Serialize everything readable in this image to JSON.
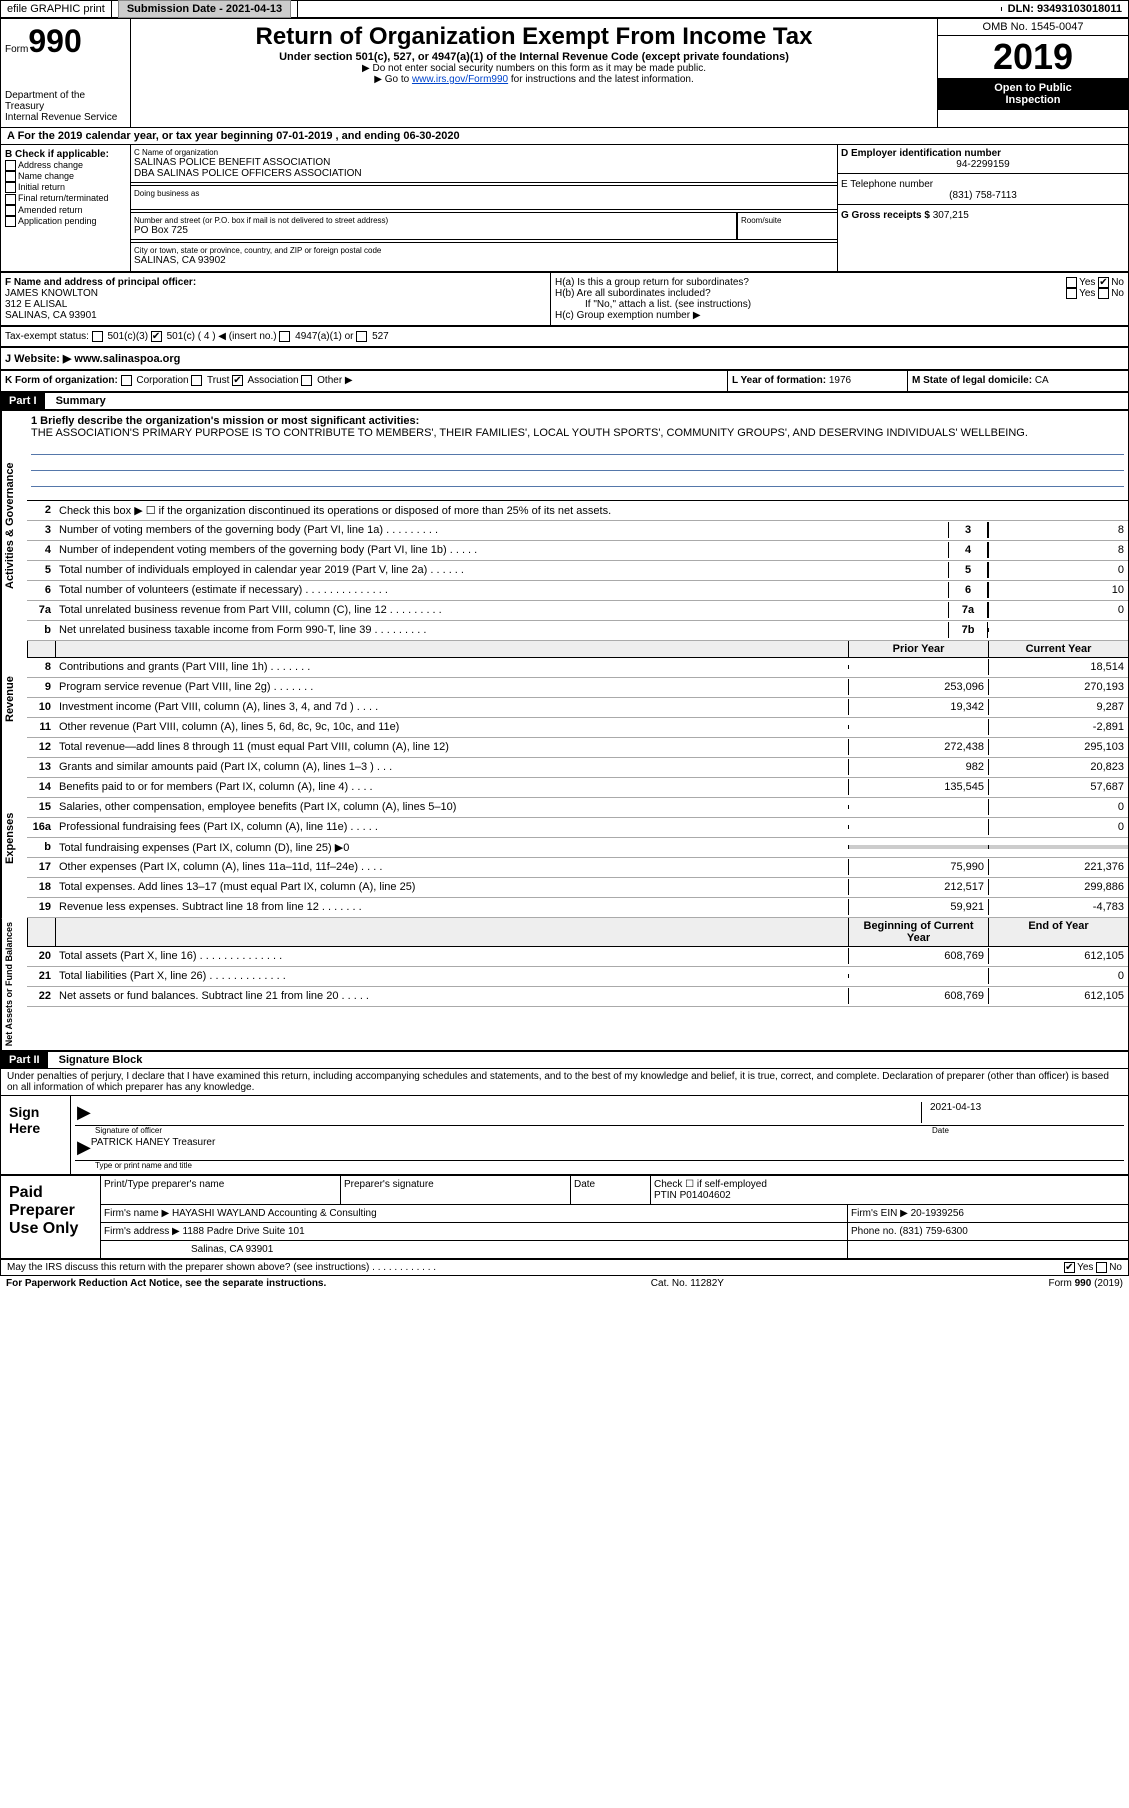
{
  "topbar": {
    "efile": "efile GRAPHIC print",
    "subdate_label": "Submission Date - ",
    "subdate": "2021-04-13",
    "dln": "DLN: 93493103018011"
  },
  "header": {
    "form_word": "Form",
    "form_num": "990",
    "dept1": "Department of the Treasury",
    "dept2": "Internal Revenue Service",
    "title": "Return of Organization Exempt From Income Tax",
    "sub1": "Under section 501(c), 527, or 4947(a)(1) of the Internal Revenue Code (except private foundations)",
    "sub2": "▶ Do not enter social security numbers on this form as it may be made public.",
    "sub3_pre": "▶ Go to ",
    "sub3_link": "www.irs.gov/Form990",
    "sub3_post": " for instructions and the latest information.",
    "omb": "OMB No. 1545-0047",
    "year": "2019",
    "open1": "Open to Public",
    "open2": "Inspection"
  },
  "period": "A For the 2019 calendar year, or tax year beginning 07-01-2019    , and ending 06-30-2020",
  "sectionB": {
    "label": "B Check if applicable:",
    "opts": [
      "Address change",
      "Name change",
      "Initial return",
      "Final return/terminated",
      "Amended return",
      "Application pending"
    ]
  },
  "orgbox": {
    "name_label": "C Name of organization",
    "name1": "SALINAS POLICE BENEFIT ASSOCIATION",
    "name2": "DBA SALINAS POLICE OFFICERS ASSOCIATION",
    "dba_label": "Doing business as",
    "addr_label": "Number and street (or P.O. box if mail is not delivered to street address)",
    "room_label": "Room/suite",
    "addr": "PO Box 725",
    "city_label": "City or town, state or province, country, and ZIP or foreign postal code",
    "city": "SALINAS, CA  93902"
  },
  "rightbox": {
    "ein_label": "D Employer identification number",
    "ein": "94-2299159",
    "tel_label": "E Telephone number",
    "tel": "(831) 758-7113",
    "gross_label": "G Gross receipts $ ",
    "gross": "307,215"
  },
  "sectionF": {
    "label": "F  Name and address of principal officer:",
    "name": "JAMES KNOWLTON",
    "addr1": "312 E ALISAL",
    "addr2": "SALINAS, CA  93901",
    "ha": "H(a)  Is this a group return for subordinates?",
    "hb": "H(b)  Are all subordinates included?",
    "hb_note": "If \"No,\" attach a list. (see instructions)",
    "hc": "H(c)  Group exemption number ▶"
  },
  "taxexempt": {
    "label": "Tax-exempt status:",
    "opt1": "501(c)(3)",
    "opt2": "501(c) ( 4 ) ◀ (insert no.)",
    "opt3": "4947(a)(1) or",
    "opt4": "527"
  },
  "website": {
    "label": "J  Website: ▶ ",
    "val": "www.salinaspoa.org"
  },
  "korg": {
    "label": "K Form of organization:",
    "opts": [
      "Corporation",
      "Trust",
      "Association",
      "Other ▶"
    ],
    "L": "L Year of formation: ",
    "Lval": "1976",
    "M": "M State of legal domicile: ",
    "Mval": "CA"
  },
  "part1": {
    "label": "Part I",
    "title": "Summary"
  },
  "mission": {
    "q": "1  Briefly describe the organization's mission or most significant activities:",
    "text": "THE ASSOCIATION'S PRIMARY PURPOSE IS TO CONTRIBUTE TO MEMBERS', THEIR FAMILIES', LOCAL YOUTH SPORTS', COMMUNITY GROUPS', AND DESERVING INDIVIDUALS' WELLBEING."
  },
  "labels": {
    "activities": "Activities & Governance",
    "revenue": "Revenue",
    "expenses": "Expenses",
    "netassets": "Net Assets or Fund Balances"
  },
  "lines_top": [
    {
      "n": "2",
      "t": "Check this box ▶ ☐  if the organization discontinued its operations or disposed of more than 25% of its net assets."
    },
    {
      "n": "3",
      "t": "Number of voting members of the governing body (Part VI, line 1a)   .   .   .   .   .   .   .   .   .",
      "box": "3",
      "v": "8"
    },
    {
      "n": "4",
      "t": "Number of independent voting members of the governing body (Part VI, line 1b)   .   .   .   .   .",
      "box": "4",
      "v": "8"
    },
    {
      "n": "5",
      "t": "Total number of individuals employed in calendar year 2019 (Part V, line 2a)   .   .   .   .   .   .",
      "box": "5",
      "v": "0"
    },
    {
      "n": "6",
      "t": "Total number of volunteers (estimate if necessary)   .   .   .   .   .   .   .   .   .   .   .   .   .   .",
      "box": "6",
      "v": "10"
    },
    {
      "n": "7a",
      "t": "Total unrelated business revenue from Part VIII, column (C), line 12   .   .   .   .   .   .   .   .   .",
      "box": "7a",
      "v": "0"
    },
    {
      "n": "b",
      "t": "Net unrelated business taxable income from Form 990-T, line 39    .   .   .   .   .   .   .   .   .",
      "box": "7b",
      "v": ""
    }
  ],
  "col_headers": {
    "prior": "Prior Year",
    "current": "Current Year",
    "begin": "Beginning of Current Year",
    "end": "End of Year"
  },
  "revenue_lines": [
    {
      "n": "8",
      "t": "Contributions and grants (Part VIII, line 1h)   .   .   .   .   .   .   .",
      "p": "",
      "c": "18,514"
    },
    {
      "n": "9",
      "t": "Program service revenue (Part VIII, line 2g)   .   .   .   .   .   .   .",
      "p": "253,096",
      "c": "270,193"
    },
    {
      "n": "10",
      "t": "Investment income (Part VIII, column (A), lines 3, 4, and 7d )   .   .   .   .",
      "p": "19,342",
      "c": "9,287"
    },
    {
      "n": "11",
      "t": "Other revenue (Part VIII, column (A), lines 5, 6d, 8c, 9c, 10c, and 11e)",
      "p": "",
      "c": "-2,891"
    },
    {
      "n": "12",
      "t": "Total revenue—add lines 8 through 11 (must equal Part VIII, column (A), line 12)",
      "p": "272,438",
      "c": "295,103"
    }
  ],
  "expense_lines": [
    {
      "n": "13",
      "t": "Grants and similar amounts paid (Part IX, column (A), lines 1–3 )   .   .   .",
      "p": "982",
      "c": "20,823"
    },
    {
      "n": "14",
      "t": "Benefits paid to or for members (Part IX, column (A), line 4)   .   .   .   .",
      "p": "135,545",
      "c": "57,687"
    },
    {
      "n": "15",
      "t": "Salaries, other compensation, employee benefits (Part IX, column (A), lines 5–10)",
      "p": "",
      "c": "0"
    },
    {
      "n": "16a",
      "t": "Professional fundraising fees (Part IX, column (A), line 11e)   .   .   .   .   .",
      "p": "",
      "c": "0"
    },
    {
      "n": "b",
      "t": "Total fundraising expenses (Part IX, column (D), line 25) ▶0",
      "p": "shaded",
      "c": "shaded"
    },
    {
      "n": "17",
      "t": "Other expenses (Part IX, column (A), lines 11a–11d, 11f–24e)   .   .   .   .",
      "p": "75,990",
      "c": "221,376"
    },
    {
      "n": "18",
      "t": "Total expenses. Add lines 13–17 (must equal Part IX, column (A), line 25)",
      "p": "212,517",
      "c": "299,886"
    },
    {
      "n": "19",
      "t": "Revenue less expenses. Subtract line 18 from line 12   .   .   .   .   .   .   .",
      "p": "59,921",
      "c": "-4,783"
    }
  ],
  "net_lines": [
    {
      "n": "20",
      "t": "Total assets (Part X, line 16)   .   .   .   .   .   .   .   .   .   .   .   .   .   .",
      "p": "608,769",
      "c": "612,105"
    },
    {
      "n": "21",
      "t": "Total liabilities (Part X, line 26)   .   .   .   .   .   .   .   .   .   .   .   .   .",
      "p": "",
      "c": "0"
    },
    {
      "n": "22",
      "t": "Net assets or fund balances. Subtract line 21 from line 20   .   .   .   .   .",
      "p": "608,769",
      "c": "612,105"
    }
  ],
  "part2": {
    "label": "Part II",
    "title": "Signature Block"
  },
  "sig": {
    "decl": "Under penalties of perjury, I declare that I have examined this return, including accompanying schedules and statements, and to the best of my knowledge and belief, it is true, correct, and complete. Declaration of preparer (other than officer) is based on all information of which preparer has any knowledge.",
    "sign_here": "Sign Here",
    "sig_officer": "Signature of officer",
    "date_label": "Date",
    "date": "2021-04-13",
    "name": "PATRICK HANEY  Treasurer",
    "name_label": "Type or print name and title"
  },
  "prep": {
    "label": "Paid Preparer Use Only",
    "h1": "Print/Type preparer's name",
    "h2": "Preparer's signature",
    "h3": "Date",
    "check": "Check ☐ if self-employed",
    "ptin_label": "PTIN",
    "ptin": "P01404602",
    "firm_label": "Firm's name   ▶ ",
    "firm": "HAYASHI WAYLAND Accounting & Consulting",
    "ein_label": "Firm's EIN ▶ ",
    "ein": "20-1939256",
    "addr_label": "Firm's address ▶ ",
    "addr1": "1188 Padre Drive Suite 101",
    "addr2": "Salinas, CA  93901",
    "phone_label": "Phone no. ",
    "phone": "(831) 759-6300"
  },
  "bottom": {
    "q": "May the IRS discuss this return with the preparer shown above? (see instructions)   .   .   .   .   .   .   .   .   .   .   .   .",
    "yes": "Yes",
    "no": "No"
  },
  "footer": {
    "l": "For Paperwork Reduction Act Notice, see the separate instructions.",
    "c": "Cat. No. 11282Y",
    "r": "Form 990 (2019)"
  }
}
